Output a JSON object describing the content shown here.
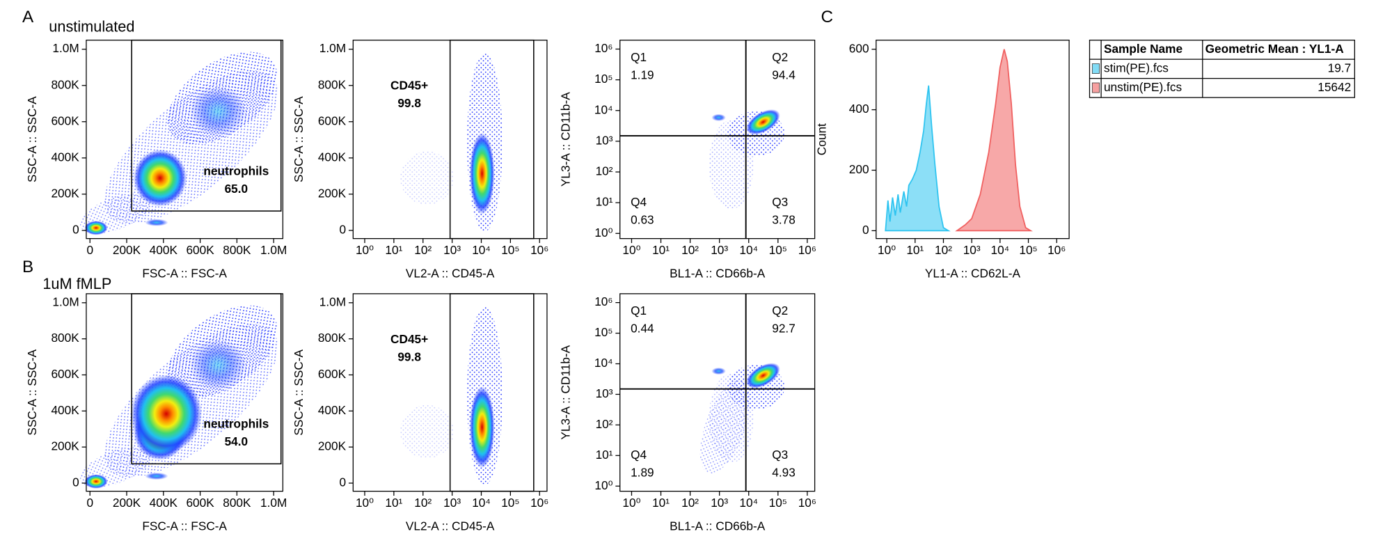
{
  "panel_labels": {
    "a": "A",
    "a_condition": "unstimulated",
    "b": "B",
    "b_condition": "1uM fMLP",
    "c": "C"
  },
  "chart_data": [
    {
      "type": "density",
      "xlabel": "FSC-A :: FSC-A",
      "ylabel": "SSC-A :: SSC-A",
      "xlim": [
        -20000,
        1050000
      ],
      "ylim": [
        -45000,
        1050000
      ],
      "xticks": [
        0,
        {
          "value": 200000,
          "label": "200K"
        },
        {
          "value": 400000,
          "label": "400K"
        },
        {
          "value": 600000,
          "label": "600K"
        },
        {
          "value": 800000,
          "label": "800K"
        },
        {
          "value": 1000000,
          "label": "1.0M"
        }
      ],
      "yticks": [
        0,
        {
          "value": 200000,
          "label": "200K"
        },
        {
          "value": 400000,
          "label": "400K"
        },
        {
          "value": 600000,
          "label": "600K"
        },
        {
          "value": 800000,
          "label": "800K"
        },
        {
          "value": 1000000,
          "label": "1.0M"
        }
      ],
      "gates": [
        {
          "name": "neutrophils",
          "value": 65,
          "value_label": "65.0",
          "x": [
            227000,
            1040000
          ],
          "y": [
            107000,
            1050000
          ]
        }
      ]
    },
    {
      "type": "density",
      "xscale": "log",
      "xlabel": "VL2-A :: CD45-A",
      "ylabel": "SSC-A :: SSC-A",
      "xlim": [
        0.4,
        1800000
      ],
      "ylim": [
        -45000,
        1050000
      ],
      "xticks": [
        {
          "value": 1,
          "label": "10⁰"
        },
        {
          "value": 10,
          "label": "10¹"
        },
        {
          "value": 100,
          "label": "10²"
        },
        {
          "value": 1000,
          "label": "10³"
        },
        {
          "value": 10000,
          "label": "10⁴"
        },
        {
          "value": 100000,
          "label": "10⁵"
        },
        {
          "value": 1000000,
          "label": "10⁶"
        }
      ],
      "yticks": [
        0,
        {
          "value": 200000,
          "label": "200K"
        },
        {
          "value": 400000,
          "label": "400K"
        },
        {
          "value": 600000,
          "label": "600K"
        },
        {
          "value": 800000,
          "label": "800K"
        },
        {
          "value": 1000000,
          "label": "1.0M"
        }
      ],
      "gates": [
        {
          "name": "CD45+",
          "value": 99.8,
          "x": [
            850,
            630000
          ],
          "y": [
            -45000,
            1050000
          ]
        }
      ]
    },
    {
      "type": "quadrant",
      "xscale": "log",
      "yscale": "log",
      "xlabel": "BL1-A :: CD66b-A",
      "ylabel": "YL3-A :: CD11b-A",
      "xlim": [
        0.4,
        1800000
      ],
      "ylim": [
        0.68,
        1950000
      ],
      "xticks": [
        {
          "value": 1,
          "label": "10⁰"
        },
        {
          "value": 10,
          "label": "10¹"
        },
        {
          "value": 100,
          "label": "10²"
        },
        {
          "value": 1000,
          "label": "10³"
        },
        {
          "value": 10000,
          "label": "10⁴"
        },
        {
          "value": 100000,
          "label": "10⁵"
        },
        {
          "value": 1000000,
          "label": "10⁶"
        }
      ],
      "yticks": [
        {
          "value": 1,
          "label": "10⁰"
        },
        {
          "value": 10,
          "label": "10¹"
        },
        {
          "value": 100,
          "label": "10²"
        },
        {
          "value": 1000,
          "label": "10³"
        },
        {
          "value": 10000,
          "label": "10⁴"
        },
        {
          "value": 100000,
          "label": "10⁵"
        },
        {
          "value": 1000000,
          "label": "10⁶"
        }
      ],
      "quadrant_x": 8000,
      "quadrant_y": 1500,
      "quadrants": [
        {
          "name": "Q1",
          "value": 1.19
        },
        {
          "name": "Q2",
          "value": 94.4
        },
        {
          "name": "Q3",
          "value": 3.78
        },
        {
          "name": "Q4",
          "value": 0.63
        }
      ]
    },
    {
      "type": "density",
      "xlabel": "FSC-A :: FSC-A",
      "ylabel": "SSC-A :: SSC-A",
      "xlim": [
        -20000,
        1050000
      ],
      "ylim": [
        -45000,
        1050000
      ],
      "xticks": [
        0,
        {
          "value": 200000,
          "label": "200K"
        },
        {
          "value": 400000,
          "label": "400K"
        },
        {
          "value": 600000,
          "label": "600K"
        },
        {
          "value": 800000,
          "label": "800K"
        },
        {
          "value": 1000000,
          "label": "1.0M"
        }
      ],
      "yticks": [
        0,
        {
          "value": 200000,
          "label": "200K"
        },
        {
          "value": 400000,
          "label": "400K"
        },
        {
          "value": 600000,
          "label": "600K"
        },
        {
          "value": 800000,
          "label": "800K"
        },
        {
          "value": 1000000,
          "label": "1.0M"
        }
      ],
      "gates": [
        {
          "name": "neutrophils",
          "value": 54,
          "value_label": "54.0",
          "x": [
            227000,
            1040000
          ],
          "y": [
            107000,
            1050000
          ]
        }
      ]
    },
    {
      "type": "density",
      "xscale": "log",
      "xlabel": "VL2-A :: CD45-A",
      "ylabel": "SSC-A :: SSC-A",
      "xlim": [
        0.4,
        1800000
      ],
      "ylim": [
        -45000,
        1050000
      ],
      "xticks": [
        {
          "value": 1,
          "label": "10⁰"
        },
        {
          "value": 10,
          "label": "10¹"
        },
        {
          "value": 100,
          "label": "10²"
        },
        {
          "value": 1000,
          "label": "10³"
        },
        {
          "value": 10000,
          "label": "10⁴"
        },
        {
          "value": 100000,
          "label": "10⁵"
        },
        {
          "value": 1000000,
          "label": "10⁶"
        }
      ],
      "yticks": [
        0,
        {
          "value": 200000,
          "label": "200K"
        },
        {
          "value": 400000,
          "label": "400K"
        },
        {
          "value": 600000,
          "label": "600K"
        },
        {
          "value": 800000,
          "label": "800K"
        },
        {
          "value": 1000000,
          "label": "1.0M"
        }
      ],
      "gates": [
        {
          "name": "CD45+",
          "value": 99.8,
          "x": [
            850,
            630000
          ],
          "y": [
            -45000,
            1050000
          ]
        }
      ]
    },
    {
      "type": "quadrant",
      "xscale": "log",
      "yscale": "log",
      "xlabel": "BL1-A :: CD66b-A",
      "ylabel": "YL3-A :: CD11b-A",
      "xlim": [
        0.4,
        1800000
      ],
      "ylim": [
        0.68,
        1950000
      ],
      "xticks": [
        {
          "value": 1,
          "label": "10⁰"
        },
        {
          "value": 10,
          "label": "10¹"
        },
        {
          "value": 100,
          "label": "10²"
        },
        {
          "value": 1000,
          "label": "10³"
        },
        {
          "value": 10000,
          "label": "10⁴"
        },
        {
          "value": 100000,
          "label": "10⁵"
        },
        {
          "value": 1000000,
          "label": "10⁶"
        }
      ],
      "yticks": [
        {
          "value": 1,
          "label": "10⁰"
        },
        {
          "value": 10,
          "label": "10¹"
        },
        {
          "value": 100,
          "label": "10²"
        },
        {
          "value": 1000,
          "label": "10³"
        },
        {
          "value": 10000,
          "label": "10⁴"
        },
        {
          "value": 100000,
          "label": "10⁵"
        },
        {
          "value": 1000000,
          "label": "10⁶"
        }
      ],
      "quadrant_x": 8000,
      "quadrant_y": 1500,
      "quadrants": [
        {
          "name": "Q1",
          "value": 0.44
        },
        {
          "name": "Q2",
          "value": 92.7
        },
        {
          "name": "Q3",
          "value": 4.93
        },
        {
          "name": "Q4",
          "value": 1.89
        }
      ]
    },
    {
      "type": "area",
      "xscale": "log",
      "xlabel": "YL1-A :: CD62L-A",
      "ylabel": "Count",
      "xlim": [
        0.42,
        2750000
      ],
      "ylim": [
        -26,
        630
      ],
      "xticks": [
        {
          "value": 1,
          "label": "10⁰"
        },
        {
          "value": 10,
          "label": "10¹"
        },
        {
          "value": 100,
          "label": "10²"
        },
        {
          "value": 1000,
          "label": "10³"
        },
        {
          "value": 10000,
          "label": "10⁴"
        },
        {
          "value": 100000,
          "label": "10⁵"
        },
        {
          "value": 1000000,
          "label": "10⁶"
        }
      ],
      "yticks": [
        0,
        200,
        400,
        600
      ],
      "table_columns": [
        "Sample Name",
        "Geometric Mean : YL1-A"
      ],
      "series": [
        {
          "name": "stim(PE).fcs",
          "color": "#2ec4f0",
          "geometric_mean": 19.7,
          "x": [
            0.9,
            1.1,
            1.3,
            1.6,
            2,
            2.5,
            3,
            4,
            5,
            6,
            8,
            11,
            15,
            20,
            25,
            30,
            38,
            50,
            70,
            100,
            150
          ],
          "values": [
            0,
            100,
            30,
            110,
            50,
            120,
            60,
            130,
            80,
            150,
            170,
            200,
            260,
            330,
            420,
            480,
            350,
            220,
            80,
            10,
            0
          ]
        },
        {
          "name": "unstim(PE).fcs",
          "color": "#f06060",
          "geometric_mean": 15642,
          "x": [
            300,
            600,
            1000,
            2000,
            4000,
            7000,
            10000,
            14000,
            18000,
            25000,
            35000,
            50000,
            80000,
            120000
          ],
          "values": [
            0,
            20,
            40,
            120,
            260,
            420,
            540,
            600,
            560,
            420,
            220,
            80,
            10,
            0
          ]
        }
      ]
    }
  ]
}
